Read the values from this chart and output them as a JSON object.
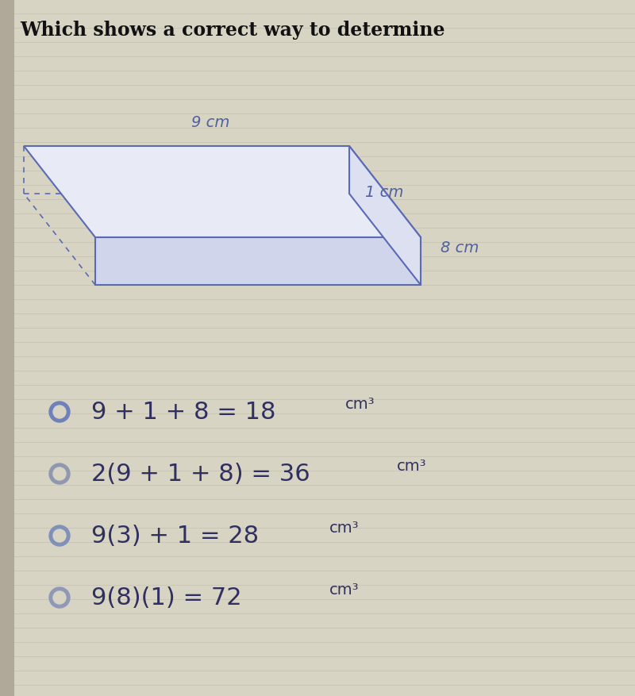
{
  "background_color": "#d8d4c4",
  "line_color": "#c8c4b4",
  "title": "Which shows a correct way to determine",
  "title_fontsize": 17,
  "title_color": "#111111",
  "prism_color": "#5a6ab5",
  "prism_face_top": "#e8eaf6",
  "prism_face_front": "#d0d5ec",
  "prism_face_right": "#dde0f0",
  "dim_9cm": "9 cm",
  "dim_1cm": "1 cm",
  "dim_8cm": "8 cm",
  "dim_fontsize": 14,
  "dim_color": "#5060a0",
  "option_texts_plain": [
    "9 + 1 + 8 = 18",
    "2(9 + 1 + 8) = 36",
    "9(3) + 1 = 28",
    "9(8)(1) = 72"
  ],
  "option_superscripts": [
    "cm³",
    "cm³",
    "cm³",
    "cm³"
  ],
  "radio_colors": [
    "#7080b8",
    "#9098b0",
    "#8090b8",
    "#9098b8"
  ],
  "radio_inner_colors": [
    "#d8d4c4",
    "#d8d4c4",
    "#d8d4c4",
    "#d8d4c4"
  ],
  "radio_filled": [
    false,
    false,
    false,
    false
  ],
  "option_fontsize": 22,
  "sup_fontsize": 14,
  "option_color": "#303060"
}
